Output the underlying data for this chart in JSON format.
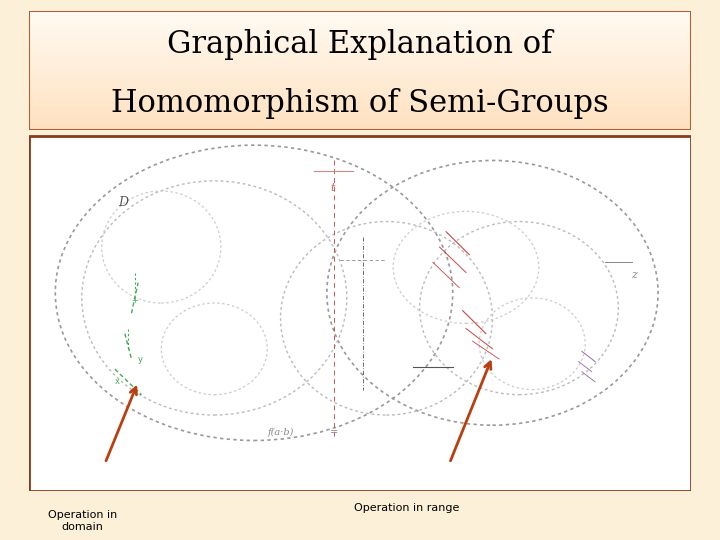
{
  "title_line1": "Graphical Explanation of",
  "title_line2": "Homomorphism of Semi-Groups",
  "title_fontsize": 22,
  "title_border_color": "#b06030",
  "main_border_color": "#8b3a1a",
  "main_bg_color": "#ffffff",
  "page_bg_color": "#fdf0d8",
  "label_left": "Operation in\ndomain",
  "label_right": "Operation in range",
  "label_fontsize": 8,
  "arrow_color": "#b84010"
}
